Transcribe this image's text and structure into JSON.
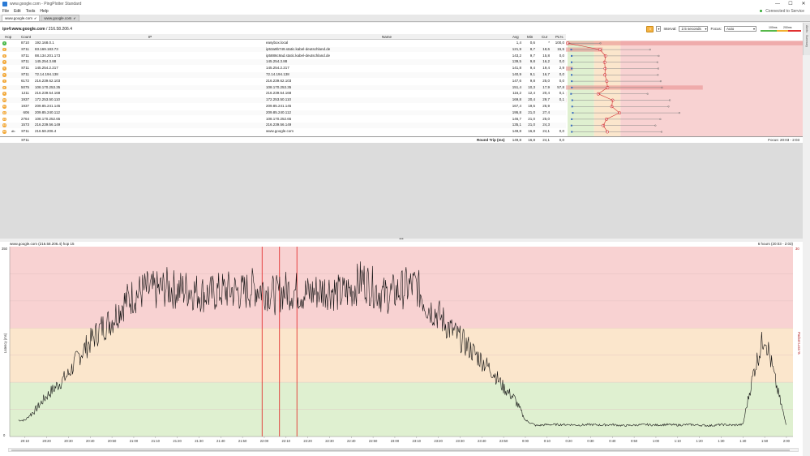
{
  "window": {
    "title": "www.google.com - PingPlotter Standard",
    "min": "—",
    "max": "☐",
    "close": "✕"
  },
  "menu": [
    "File",
    "Edit",
    "Tools",
    "Help"
  ],
  "connection": "Connected to Service",
  "tabs": [
    {
      "label": "www.google.com",
      "active": true
    },
    {
      "label": "www.google.com",
      "active": false
    }
  ],
  "side_tabs": [
    "Alerts",
    "Summary"
  ],
  "toolbar": {
    "target_prefix": "ipv4:",
    "target_host": "www.google.com",
    "target_ip": " / 216.58.206.4",
    "interval_label": "Interval:",
    "interval_value": "2.5 seconds",
    "focus_label": "Focus:",
    "focus_value": "Auto",
    "legend_low": "100ms",
    "legend_high": "200ms"
  },
  "columns": {
    "hop": "Hop",
    "count": "Count",
    "ip": "IP",
    "name": "Name",
    "avg": "Avg",
    "min": "Min",
    "cur": "Cur",
    "pl": "PL%",
    "zero_ms": "0 ms",
    "latency": "Latency",
    "max_ms": "999 ms"
  },
  "hops": [
    {
      "hop": "1",
      "count": "8710",
      "ip": "192.168.0.1",
      "name": "easybox.local",
      "avg": "1,4",
      "min": "0,6",
      "cur": "*",
      "pl": "100,0",
      "status": "green"
    },
    {
      "hop": "2",
      "count": "8711",
      "ip": "83.169.183.73",
      "name": "ip53a9b749.static.kabel-deutschland.de",
      "avg": "121,9",
      "min": "8,7",
      "cur": "18,6",
      "pl": "15,5",
      "status": "orange"
    },
    {
      "hop": "3",
      "count": "8711",
      "ip": "88.134.201.173",
      "name": "ip5886c9ad.static.kabel-deutschland.de",
      "avg": "143,2",
      "min": "9,7",
      "cur": "15,8",
      "pl": "0,0",
      "status": "orange"
    },
    {
      "hop": "4",
      "count": "8711",
      "ip": "145.254.3.88",
      "name": "145.254.3.88",
      "avg": "139,5",
      "min": "9,8",
      "cur": "16,2",
      "pl": "0,0",
      "status": "orange"
    },
    {
      "hop": "5",
      "count": "8711",
      "ip": "145.254.2.217",
      "name": "145.254.2.217",
      "avg": "141,8",
      "min": "9,4",
      "cur": "19,4",
      "pl": "2,9",
      "status": "orange"
    },
    {
      "hop": "6",
      "count": "8711",
      "ip": "72.14.194.138",
      "name": "72.14.194.138",
      "avg": "140,9",
      "min": "9,1",
      "cur": "16,7",
      "pl": "0,0",
      "status": "orange"
    },
    {
      "hop": "7",
      "count": "6172",
      "ip": "216.239.62.103",
      "name": "216.239.62.103",
      "avg": "147,6",
      "min": "9,8",
      "cur": "25,0",
      "pl": "0,0",
      "status": "orange"
    },
    {
      "hop": "8",
      "count": "5075",
      "ip": "108.170.253.35",
      "name": "108.170.253.35",
      "avg": "151,4",
      "min": "10,3",
      "cur": "17,9",
      "pl": "57,8",
      "status": "orange"
    },
    {
      "hop": "9",
      "count": "1211",
      "ip": "216.239.54.168",
      "name": "216.239.54.168",
      "avg": "116,2",
      "min": "12,4",
      "cur": "20,4",
      "pl": "0,1",
      "status": "orange"
    },
    {
      "hop": "10",
      "count": "1937",
      "ip": "172.253.50.110",
      "name": "172.253.50.110",
      "avg": "169,8",
      "min": "20,4",
      "cur": "29,7",
      "pl": "0,1",
      "status": "orange"
    },
    {
      "hop": "11",
      "count": "1937",
      "ip": "209.85.241.145",
      "name": "209.85.241.145",
      "avg": "167,4",
      "min": "19,5",
      "cur": "25,9",
      "pl": "",
      "status": "orange"
    },
    {
      "hop": "12",
      "count": "606",
      "ip": "209.85.240.112",
      "name": "209.85.240.112",
      "avg": "195,8",
      "min": "21,0",
      "cur": "27,4",
      "pl": "",
      "status": "orange"
    },
    {
      "hop": "13",
      "count": "2764",
      "ip": "108.170.252.65",
      "name": "108.170.252.65",
      "avg": "146,7",
      "min": "21,0",
      "cur": "25,0",
      "pl": "",
      "status": "orange"
    },
    {
      "hop": "14",
      "count": "1573",
      "ip": "216.239.56.149",
      "name": "216.239.56.149",
      "avg": "135,1",
      "min": "21,0",
      "cur": "24,3",
      "pl": "",
      "status": "orange"
    },
    {
      "hop": "15",
      "count": "8711",
      "ip": "216.58.206.4",
      "name": "www.google.com",
      "avg": "149,8",
      "min": "16,8",
      "cur": "24,1",
      "pl": "0,0",
      "status": "orange"
    }
  ],
  "hop15_marker": "db",
  "footer": {
    "count": "8711",
    "label": "Round Trip (ms)",
    "avg": "149,8",
    "min": "16,8",
    "cur": "24,1",
    "pl": "0,0",
    "focus": "Focus: 20:03 - 2:03"
  },
  "latency_minigraph": {
    "avg_ms": [
      1,
      122,
      143,
      140,
      142,
      141,
      148,
      151,
      116,
      170,
      167,
      196,
      147,
      135,
      150
    ],
    "pl_pct": [
      100,
      15.5,
      0,
      0,
      2.9,
      0,
      0,
      57.8,
      0.1,
      0.1,
      0,
      0,
      0,
      0,
      0
    ]
  },
  "splitter_glyph": "•••",
  "graph": {
    "header": "www.google.com (216.58.206.4) hop 15",
    "range": "6 hours (20:03 - 2:03)",
    "ylabel": "Latency (ms)",
    "y2label": "Packet Loss %",
    "y_top": "350",
    "y_bottom": "0",
    "y2_top": "30"
  },
  "chart_data": {
    "type": "line",
    "title": "",
    "xlabel": "",
    "ylabel": "Latency (ms)",
    "ylim": [
      0,
      350
    ],
    "zones": [
      {
        "from": 0,
        "to": 100,
        "color": "#dff0d0"
      },
      {
        "from": 100,
        "to": 200,
        "color": "#fbe6cc"
      },
      {
        "from": 200,
        "to": 350,
        "color": "#f8d2d2"
      }
    ],
    "x_ticks": [
      "20:10",
      "20:20",
      "20:30",
      "20:40",
      "20:50",
      "21:00",
      "21:10",
      "21:20",
      "21:30",
      "21:40",
      "21:50",
      "22:00",
      "22:10",
      "22:20",
      "22:30",
      "22:40",
      "22:50",
      "23:00",
      "23:10",
      "23:20",
      "23:30",
      "23:40",
      "23:50",
      "0:00",
      "0:10",
      "0:20",
      "0:30",
      "0:40",
      "0:50",
      "1:00",
      "1:10",
      "1:20",
      "1:30",
      "1:40",
      "1:50",
      "2:00"
    ],
    "x_minutes": [
      7,
      12,
      17,
      22,
      27,
      32,
      37,
      42,
      47,
      52,
      57,
      62,
      67,
      72,
      77,
      82,
      87,
      92,
      97,
      102,
      107,
      112,
      117,
      122,
      127,
      132,
      137,
      142,
      147,
      152,
      157,
      162,
      167,
      172,
      177,
      182,
      187,
      192,
      197,
      202,
      207,
      212,
      217,
      222,
      227,
      232,
      237,
      242,
      247,
      252,
      257,
      262,
      267,
      272,
      277,
      282,
      287,
      292,
      297,
      302,
      307,
      312,
      317,
      322,
      327,
      332,
      337,
      342,
      347,
      352,
      357
    ],
    "series": [
      {
        "values": [
          30,
          50,
          75,
          95,
          115,
          150,
          175,
          200,
          215,
          245,
          260,
          270,
          268,
          275,
          270,
          272,
          265,
          262,
          268,
          270,
          265,
          275,
          272,
          260,
          270,
          268,
          263,
          268,
          272,
          262,
          270,
          290,
          275,
          260,
          265,
          275,
          278,
          240,
          225,
          200,
          180,
          160,
          140,
          120,
          90,
          70,
          30,
          20,
          22,
          22,
          22,
          21,
          22,
          21,
          22,
          20,
          21,
          22,
          21,
          22,
          21,
          22,
          21,
          20,
          22,
          21,
          22,
          120,
          190,
          100,
          20
        ]
      }
    ],
    "packet_loss_markers_min": [
      116,
      124,
      132
    ],
    "line_color": "#111111",
    "loss_marker_color": "#e02020"
  }
}
